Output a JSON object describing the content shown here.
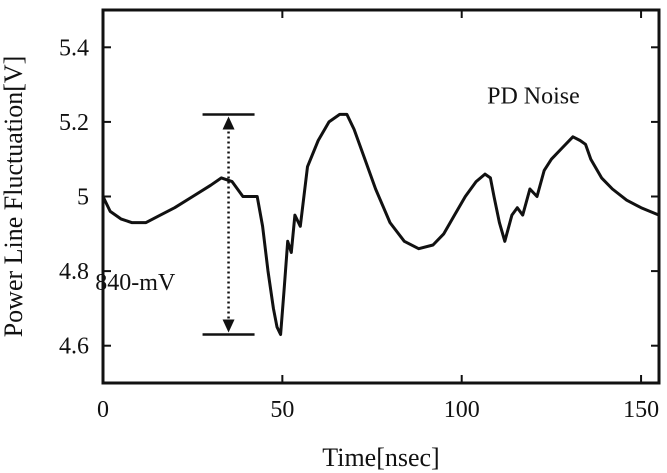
{
  "chart_data": {
    "type": "line",
    "title": "",
    "xlabel": "Time[nsec]",
    "ylabel": "Power Line Fluctuation[V]",
    "xlim": [
      0,
      155
    ],
    "ylim": [
      4.5,
      5.5
    ],
    "xticks": [
      0,
      50,
      100,
      150
    ],
    "xtick_labels": [
      "0",
      "50",
      "100",
      "150"
    ],
    "yticks": [
      4.6,
      4.8,
      5.0,
      5.2,
      5.4
    ],
    "ytick_labels": [
      "4.6",
      "4.8",
      "5",
      "5.2",
      "5.4"
    ],
    "grid": false,
    "series": [
      {
        "x": [
          0,
          2,
          5,
          8,
          12,
          16,
          20,
          25,
          30,
          33,
          36,
          39,
          41,
          43,
          44.5,
          46,
          47.5,
          48.5,
          49.5,
          50.5,
          51.5,
          52.5,
          53.5,
          55,
          57,
          60,
          63,
          66,
          68,
          70,
          73,
          76,
          80,
          84,
          88,
          92,
          95,
          98,
          101,
          104,
          106.5,
          108,
          109,
          110.5,
          112,
          114,
          115.5,
          117,
          119,
          121,
          123,
          125,
          128,
          131,
          133,
          134.5,
          136,
          139,
          142,
          146,
          150,
          155
        ],
        "y": [
          5.0,
          4.96,
          4.94,
          4.93,
          4.93,
          4.95,
          4.97,
          5.0,
          5.03,
          5.05,
          5.04,
          5.0,
          5.0,
          5.0,
          4.92,
          4.8,
          4.7,
          4.65,
          4.63,
          4.75,
          4.88,
          4.85,
          4.95,
          4.92,
          5.08,
          5.15,
          5.2,
          5.22,
          5.22,
          5.18,
          5.1,
          5.02,
          4.93,
          4.88,
          4.86,
          4.87,
          4.9,
          4.95,
          5.0,
          5.04,
          5.06,
          5.05,
          5.0,
          4.93,
          4.88,
          4.95,
          4.97,
          4.95,
          5.02,
          5.0,
          5.07,
          5.1,
          5.13,
          5.16,
          5.15,
          5.14,
          5.1,
          5.05,
          5.02,
          4.99,
          4.97,
          4.95
        ]
      }
    ],
    "annotations": [
      {
        "text": "PD Noise",
        "x": 120,
        "y": 5.25
      },
      {
        "text": "840-mV",
        "x": 9,
        "y": 4.75
      }
    ],
    "range_marker": {
      "x": 35,
      "y_top": 5.22,
      "y_bottom": 4.63
    }
  }
}
